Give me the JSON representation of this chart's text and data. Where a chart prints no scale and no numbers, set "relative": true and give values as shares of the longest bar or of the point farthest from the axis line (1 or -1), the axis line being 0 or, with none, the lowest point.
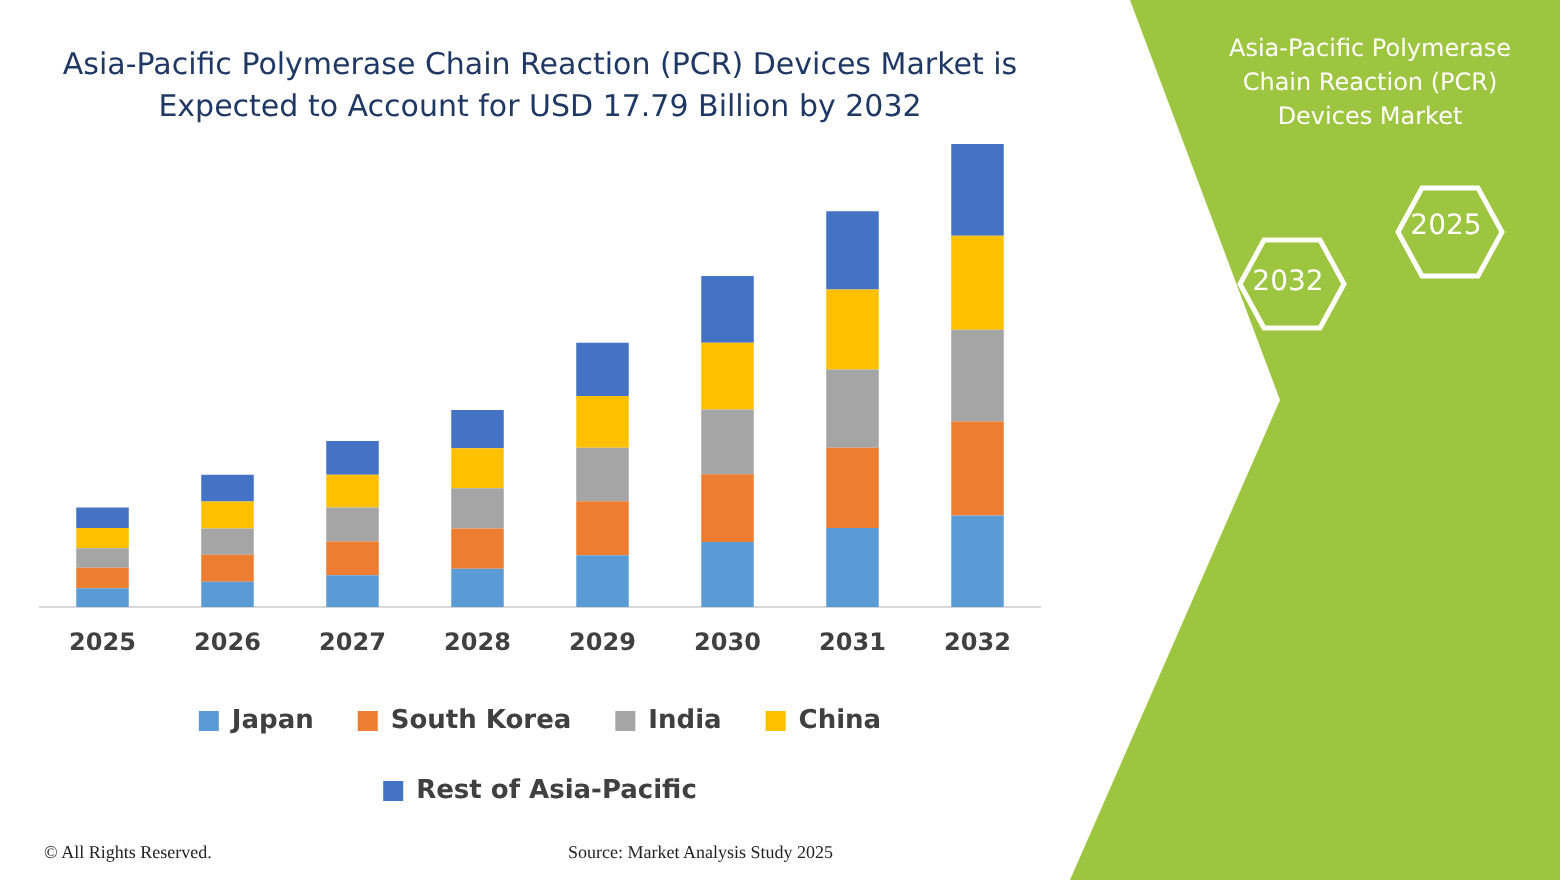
{
  "chart_data": {
    "type": "bar",
    "title": "Asia-Pacific Polymerase Chain Reaction (PCR) Devices Market is Expected to Account for USD 17.79 Billion by 2032",
    "categories": [
      "2025",
      "2026",
      "2027",
      "2028",
      "2029",
      "2030",
      "2031",
      "2032"
    ],
    "stacked": true,
    "relative": true,
    "legend": "bottom",
    "series": [
      {
        "name": "Japan",
        "color": "#5b9bd5",
        "values": [
          0.041,
          0.055,
          0.069,
          0.083,
          0.112,
          0.141,
          0.171,
          0.198
        ]
      },
      {
        "name": "South Korea",
        "color": "#ed7d31",
        "values": [
          0.044,
          0.058,
          0.073,
          0.087,
          0.117,
          0.146,
          0.173,
          0.203
        ]
      },
      {
        "name": "India",
        "color": "#a5a5a5",
        "values": [
          0.042,
          0.057,
          0.073,
          0.087,
          0.115,
          0.14,
          0.169,
          0.198
        ]
      },
      {
        "name": "China",
        "color": "#ffc000",
        "values": [
          0.044,
          0.058,
          0.071,
          0.086,
          0.112,
          0.144,
          0.173,
          0.203
        ]
      },
      {
        "name": "Rest of Asia-Pacific",
        "color": "#4472c4",
        "values": [
          0.044,
          0.058,
          0.073,
          0.083,
          0.115,
          0.144,
          0.169,
          0.198
        ]
      }
    ],
    "annotations": [
      "Asia-Pacific Polymerase Chain Reaction (PCR) Devices Market",
      "2025",
      "2032",
      "© All Rights Reserved.",
      "Source: Market Analysis Study 2025"
    ]
  }
}
